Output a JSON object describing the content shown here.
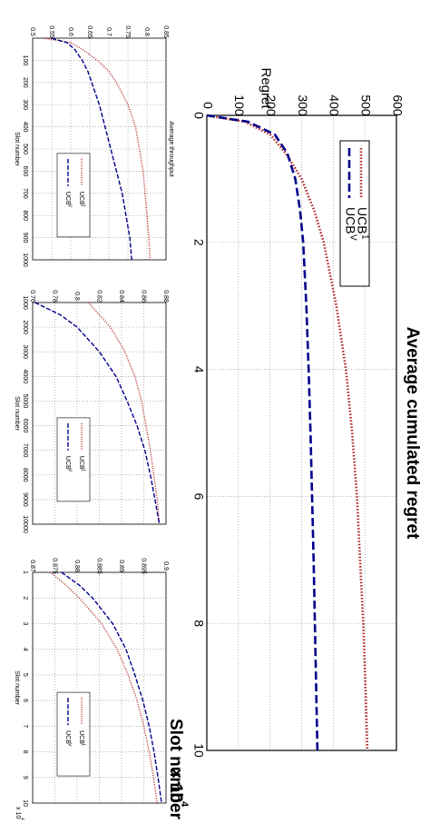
{
  "chart_data": [
    {
      "id": "main",
      "type": "line",
      "title": "Average cumulated regret",
      "xlabel": "Slot number",
      "x_multiplier_label": "× 10",
      "x_multiplier_exp": "4",
      "ylabel": "Regret",
      "xlim": [
        0,
        10
      ],
      "ylim": [
        0,
        600
      ],
      "xticks": [
        0,
        2,
        4,
        6,
        8,
        10
      ],
      "yticks": [
        100,
        200,
        300,
        400,
        500,
        600
      ],
      "ytick_zero": "0",
      "grid": true,
      "legend_position": "top-right",
      "series": [
        {
          "name": "UCB",
          "name_sub": "1",
          "color": "#b22222",
          "style": "dotted",
          "x": [
            0,
            0.1,
            0.3,
            0.6,
            1,
            1.5,
            2,
            3,
            4,
            5,
            6,
            7,
            8,
            9,
            10
          ],
          "y": [
            0,
            120,
            200,
            250,
            300,
            340,
            370,
            410,
            440,
            460,
            475,
            485,
            495,
            502,
            508
          ]
        },
        {
          "name": "UCB",
          "name_sub": "V",
          "color": "#00008b",
          "style": "dashed",
          "x": [
            0,
            0.1,
            0.3,
            0.6,
            1,
            1.5,
            2,
            3,
            4,
            5,
            6,
            7,
            8,
            9,
            10
          ],
          "y": [
            0,
            130,
            215,
            255,
            280,
            295,
            305,
            315,
            322,
            328,
            333,
            338,
            342,
            346,
            350
          ]
        }
      ]
    },
    {
      "id": "thr1",
      "type": "line",
      "title": "Average throughput",
      "xlabel": "Slot number",
      "xlim": [
        0,
        1000
      ],
      "ylim": [
        0.5,
        0.85
      ],
      "xticks": [
        100,
        200,
        300,
        400,
        500,
        600,
        700,
        800,
        900,
        1000
      ],
      "yticks": [
        0.5,
        0.55,
        0.6,
        0.65,
        0.7,
        0.75,
        0.8,
        0.85
      ],
      "grid": true,
      "legend_position": "bottom-right",
      "series": [
        {
          "name": "UCB",
          "name_sub": "1",
          "color": "#b22222",
          "style": "dotted",
          "x": [
            1,
            20,
            50,
            100,
            150,
            200,
            300,
            400,
            500,
            600,
            700,
            800,
            900,
            1000
          ],
          "y": [
            0.53,
            0.6,
            0.63,
            0.67,
            0.7,
            0.72,
            0.75,
            0.77,
            0.78,
            0.79,
            0.795,
            0.8,
            0.805,
            0.808
          ]
        },
        {
          "name": "UCB",
          "name_sub": "V",
          "color": "#00008b",
          "style": "dashed",
          "x": [
            1,
            20,
            50,
            100,
            150,
            200,
            300,
            400,
            500,
            600,
            700,
            800,
            900,
            1000
          ],
          "y": [
            0.55,
            0.59,
            0.61,
            0.63,
            0.645,
            0.655,
            0.675,
            0.69,
            0.705,
            0.72,
            0.735,
            0.745,
            0.755,
            0.76
          ]
        }
      ]
    },
    {
      "id": "thr2",
      "type": "line",
      "xlabel": "Slot number",
      "xlim": [
        1000,
        10000
      ],
      "ylim": [
        0.76,
        0.88
      ],
      "xticks": [
        1000,
        2000,
        3000,
        4000,
        5000,
        6000,
        7000,
        8000,
        9000,
        10000
      ],
      "yticks": [
        0.76,
        0.78,
        0.8,
        0.82,
        0.84,
        0.86,
        0.88
      ],
      "grid": true,
      "legend_position": "bottom-right",
      "series": [
        {
          "name": "UCB",
          "name_sub": "1",
          "color": "#b22222",
          "style": "dotted",
          "x": [
            1000,
            1500,
            2000,
            3000,
            4000,
            5000,
            6000,
            7000,
            8000,
            9000,
            10000
          ],
          "y": [
            0.81,
            0.82,
            0.83,
            0.843,
            0.852,
            0.858,
            0.862,
            0.866,
            0.869,
            0.872,
            0.874
          ]
        },
        {
          "name": "UCB",
          "name_sub": "V",
          "color": "#00008b",
          "style": "dashed",
          "x": [
            1000,
            1500,
            2000,
            3000,
            4000,
            5000,
            6000,
            7000,
            8000,
            9000,
            10000
          ],
          "y": [
            0.762,
            0.785,
            0.8,
            0.82,
            0.835,
            0.845,
            0.854,
            0.861,
            0.866,
            0.87,
            0.874
          ]
        }
      ]
    },
    {
      "id": "thr3",
      "type": "line",
      "xlabel": "Slot number",
      "x_multiplier_label": "x 10",
      "x_multiplier_exp": "4",
      "xlim": [
        1,
        10
      ],
      "ylim": [
        0.87,
        0.9
      ],
      "xticks": [
        1,
        2,
        3,
        4,
        5,
        6,
        7,
        8,
        9,
        10
      ],
      "yticks": [
        0.87,
        0.875,
        0.88,
        0.885,
        0.89,
        0.895,
        0.9
      ],
      "grid": true,
      "legend_position": "bottom-right",
      "series": [
        {
          "name": "UCB",
          "name_sub": "1",
          "color": "#b22222",
          "style": "dotted",
          "x": [
            1,
            1.5,
            2,
            3,
            4,
            5,
            6,
            7,
            8,
            9,
            10
          ],
          "y": [
            0.874,
            0.8775,
            0.8805,
            0.8855,
            0.889,
            0.8915,
            0.8935,
            0.895,
            0.8962,
            0.8972,
            0.898
          ]
        },
        {
          "name": "UCB",
          "name_sub": "V",
          "color": "#00008b",
          "style": "dashed",
          "x": [
            1,
            1.5,
            2,
            3,
            4,
            5,
            6,
            7,
            8,
            9,
            10
          ],
          "y": [
            0.8765,
            0.8805,
            0.8835,
            0.888,
            0.891,
            0.893,
            0.8948,
            0.8962,
            0.8973,
            0.8982,
            0.899
          ]
        }
      ]
    }
  ]
}
